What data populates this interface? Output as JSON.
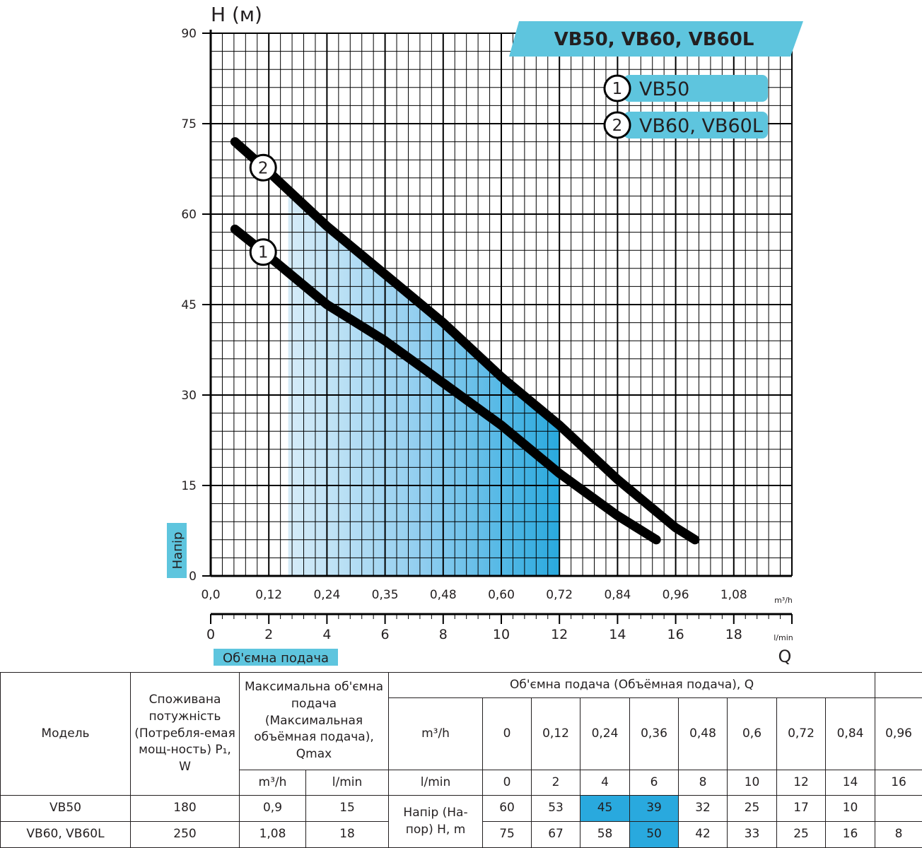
{
  "chart_data": {
    "type": "line",
    "title": "VB50, VB60, VB60L",
    "ylabel": "H (м)",
    "y_side_label": "Напір",
    "xlabel": "Q",
    "x_badge_label": "Об'ємна подача",
    "x_unit_m3h": "m³/h",
    "x_unit_lmin": "l/min",
    "ylim": [
      0,
      90
    ],
    "xlim_m3h": [
      0,
      1.2
    ],
    "y_ticks": [
      "0",
      "15",
      "30",
      "45",
      "60",
      "75",
      "90"
    ],
    "x_ticks_m3h": [
      "0,0",
      "0,12",
      "0,24",
      "0,35",
      "0,48",
      "0,60",
      "0,72",
      "0,84",
      "0,96",
      "1,08"
    ],
    "x_ticks_lmin": [
      "0",
      "2",
      "4",
      "6",
      "8",
      "10",
      "12",
      "14",
      "16",
      "18"
    ],
    "grid": true,
    "legend": [
      {
        "num": "1",
        "label": "VB50"
      },
      {
        "num": "2",
        "label": "VB60, VB60L"
      }
    ],
    "series": [
      {
        "name": "VB50",
        "marker": "1",
        "x": [
          0.05,
          0.12,
          0.24,
          0.36,
          0.48,
          0.6,
          0.72,
          0.84,
          0.92
        ],
        "y": [
          57.5,
          53,
          45,
          39,
          32,
          25,
          17,
          10,
          6
        ]
      },
      {
        "name": "VB60, VB60L",
        "marker": "2",
        "x": [
          0.05,
          0.12,
          0.24,
          0.36,
          0.48,
          0.6,
          0.72,
          0.84,
          0.96,
          1.0
        ],
        "y": [
          72,
          67,
          58,
          50,
          42,
          33,
          25,
          16,
          8,
          6
        ]
      }
    ],
    "operating_range_m3h": [
      0.16,
      0.72
    ],
    "colors": {
      "accent": "#29a9de",
      "badge": "#5ec5de",
      "curve": "#000000"
    }
  },
  "table": {
    "h_model": "Модель",
    "h_power": "Споживана потужність (Потребля-емая мощ-ность) P₁, W",
    "h_qmax": "Максимальна об'ємна подача (Максимальная объёмная подача), Qmax",
    "h_flow": "Об'ємна подача (Объёмная подача), Q",
    "u_m3h": "m³/h",
    "u_lmin": "l/min",
    "q_m3h": [
      "0",
      "0,12",
      "0,24",
      "0,36",
      "0,48",
      "0,6",
      "0,72",
      "0,84",
      "0,96"
    ],
    "q_lmin": [
      "0",
      "2",
      "4",
      "6",
      "8",
      "10",
      "12",
      "14",
      "16"
    ],
    "head_label": "Напір (На-пор) H, m",
    "rows": [
      {
        "model": "VB50",
        "power": "180",
        "qmax_m3h": "0,9",
        "qmax_lmin": "15",
        "heads": [
          "60",
          "53",
          "45",
          "39",
          "32",
          "25",
          "17",
          "10",
          ""
        ],
        "highlight": [
          false,
          false,
          true,
          true,
          false,
          false,
          false,
          false,
          false
        ]
      },
      {
        "model": "VB60, VB60L",
        "power": "250",
        "qmax_m3h": "1,08",
        "qmax_lmin": "18",
        "heads": [
          "75",
          "67",
          "58",
          "50",
          "42",
          "33",
          "25",
          "16",
          "8"
        ],
        "highlight": [
          false,
          false,
          false,
          true,
          false,
          false,
          false,
          false,
          false
        ]
      }
    ]
  }
}
